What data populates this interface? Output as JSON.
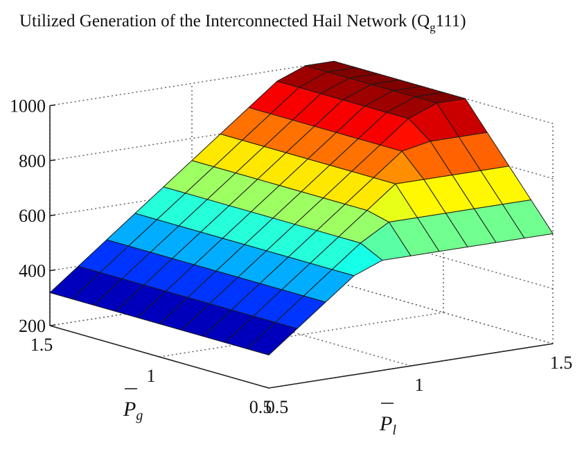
{
  "chart_data": {
    "type": "surface3d",
    "title": {
      "main": "Utilized Generation of the Interconnected Hail Network (Q",
      "sub": "g",
      "suffix": "111)"
    },
    "xlabel": {
      "base": "P",
      "sub": "l"
    },
    "ylabel": {
      "base": "P",
      "sub": "g"
    },
    "zlim": [
      200,
      1000
    ],
    "z_ticks": [
      "200",
      "400",
      "600",
      "800",
      "1000"
    ],
    "x_ticks": [
      "0.5",
      "1",
      "1.5"
    ],
    "y_ticks": [
      "1.5",
      "1",
      "0.5"
    ],
    "x": [
      0.5,
      0.6,
      0.7,
      0.8,
      0.9,
      1.0,
      1.1,
      1.2,
      1.3,
      1.4,
      1.5
    ],
    "y": [
      0.5,
      0.6,
      0.7,
      0.8,
      0.9,
      1.0,
      1.1,
      1.2,
      1.3,
      1.4,
      1.5
    ],
    "z_by_x": [
      320,
      400,
      480,
      560,
      640,
      720,
      800,
      880,
      960,
      1000,
      1000
    ],
    "z_cap_by_y": [
      600,
      700,
      800,
      900,
      1000,
      1000,
      1000,
      1000,
      1000,
      1000,
      1000
    ],
    "grid": true,
    "colormap": "jet"
  }
}
